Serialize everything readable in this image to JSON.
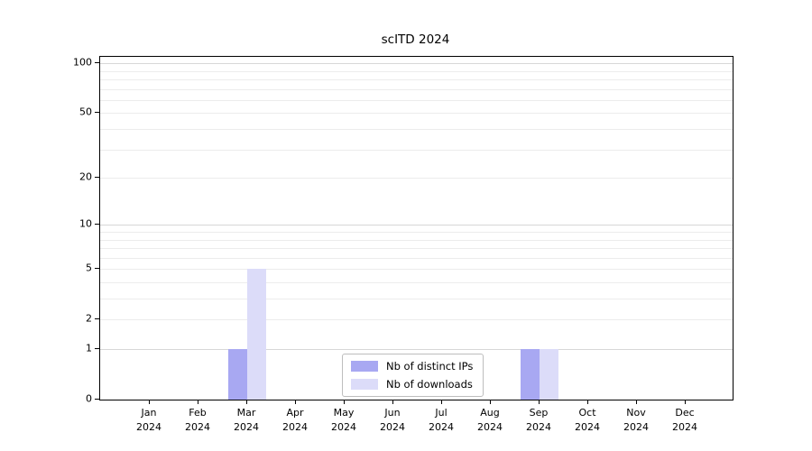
{
  "title": "scITD 2024",
  "chart_data": {
    "type": "bar",
    "title": "scITD 2024",
    "year": "2024",
    "categories": [
      "Jan",
      "Feb",
      "Mar",
      "Apr",
      "May",
      "Jun",
      "Jul",
      "Aug",
      "Sep",
      "Oct",
      "Nov",
      "Dec"
    ],
    "series": [
      {
        "name": "Nb of distinct IPs",
        "color": "#a8a8f2",
        "values": [
          0,
          0,
          1,
          0,
          0,
          0,
          0,
          0,
          1,
          0,
          0,
          0
        ]
      },
      {
        "name": "Nb of downloads",
        "color": "#dcdcf9",
        "values": [
          0,
          0,
          5,
          0,
          0,
          0,
          0,
          0,
          1,
          0,
          0,
          0
        ]
      }
    ],
    "yscale": "log1p",
    "ylim": [
      0,
      100
    ],
    "ytick_values": [
      0,
      1,
      2,
      5,
      10,
      20,
      50,
      100
    ],
    "ytick_labels": [
      "0",
      "1",
      "2",
      "5",
      "10",
      "20",
      "50",
      "100"
    ],
    "grid": true,
    "grid_major_values": [
      1,
      10,
      100
    ],
    "grid_minor_values": [
      2,
      3,
      4,
      5,
      6,
      7,
      8,
      9,
      20,
      30,
      40,
      50,
      60,
      70,
      80,
      90
    ],
    "legend_position": "bottom-center",
    "legend_entries": [
      "Nb of distinct IPs",
      "Nb of downloads"
    ]
  },
  "colors": {
    "distinct_ips": "#a8a8f2",
    "downloads": "#dcdcf9",
    "grid_minor": "#ececec",
    "grid_major": "#d7d7d7",
    "spine": "#000000",
    "background": "#ffffff"
  }
}
